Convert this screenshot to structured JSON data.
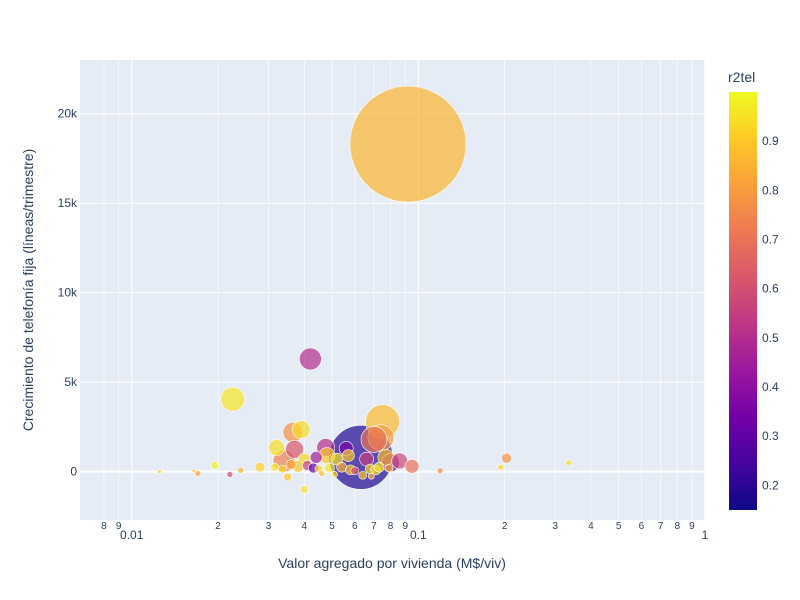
{
  "chart_data": {
    "type": "scatter",
    "subtype": "bubble",
    "xlabel": "Valor agregado por vivienda (M$/viv)",
    "ylabel": "Crecimiento de telefonía fija (líneas/trimestre)",
    "x_scale": "log",
    "xlim": [
      0.0066,
      1.0
    ],
    "ylim": [
      -2700,
      23000
    ],
    "grid": true,
    "plot_background": "#e5ecf6",
    "colorbar": {
      "title": "r2tel",
      "min": 0.15,
      "max": 1.0,
      "ticks": [
        "0.2",
        "0.3",
        "0.4",
        "0.5",
        "0.6",
        "0.7",
        "0.8",
        "0.9"
      ],
      "colorscale": [
        "#0d0887",
        "#46039f",
        "#7201a8",
        "#9c179e",
        "#bd3786",
        "#d8576b",
        "#ed7953",
        "#fb9f3a",
        "#fdca26",
        "#f0f921"
      ]
    },
    "x_major_ticks": [
      {
        "value": 0.01,
        "label": "0.01"
      },
      {
        "value": 0.1,
        "label": "0.1"
      },
      {
        "value": 1,
        "label": "1"
      }
    ],
    "x_minor_ticks": [
      {
        "value": 0.008,
        "label": "8"
      },
      {
        "value": 0.009,
        "label": "9"
      },
      {
        "value": 0.02,
        "label": "2"
      },
      {
        "value": 0.03,
        "label": "3"
      },
      {
        "value": 0.04,
        "label": "4"
      },
      {
        "value": 0.05,
        "label": "5"
      },
      {
        "value": 0.06,
        "label": "6"
      },
      {
        "value": 0.07,
        "label": "7"
      },
      {
        "value": 0.08,
        "label": "8"
      },
      {
        "value": 0.09,
        "label": "9"
      },
      {
        "value": 0.2,
        "label": "2"
      },
      {
        "value": 0.3,
        "label": "3"
      },
      {
        "value": 0.4,
        "label": "4"
      },
      {
        "value": 0.5,
        "label": "5"
      },
      {
        "value": 0.6,
        "label": "6"
      },
      {
        "value": 0.7,
        "label": "7"
      },
      {
        "value": 0.8,
        "label": "8"
      },
      {
        "value": 0.9,
        "label": "9"
      }
    ],
    "y_ticks": [
      {
        "value": 0,
        "label": "0"
      },
      {
        "value": 5000,
        "label": "5k"
      },
      {
        "value": 10000,
        "label": "10k"
      },
      {
        "value": 15000,
        "label": "15k"
      },
      {
        "value": 20000,
        "label": "20k"
      }
    ],
    "points": [
      {
        "x": 0.092,
        "y": 18300,
        "size": 58,
        "color": 0.86
      },
      {
        "x": 0.042,
        "y": 6300,
        "size": 11,
        "color": 0.5
      },
      {
        "x": 0.0225,
        "y": 4050,
        "size": 12,
        "color": 0.96
      },
      {
        "x": 0.063,
        "y": 800,
        "size": 32,
        "color": 0.18
      },
      {
        "x": 0.075,
        "y": 2800,
        "size": 17,
        "color": 0.87
      },
      {
        "x": 0.074,
        "y": 1900,
        "size": 13,
        "color": 0.8
      },
      {
        "x": 0.07,
        "y": 1800,
        "size": 13,
        "color": 0.7
      },
      {
        "x": 0.0365,
        "y": 2200,
        "size": 10,
        "color": 0.78
      },
      {
        "x": 0.039,
        "y": 2350,
        "size": 9,
        "color": 0.94
      },
      {
        "x": 0.032,
        "y": 1350,
        "size": 8,
        "color": 0.95
      },
      {
        "x": 0.037,
        "y": 1250,
        "size": 9,
        "color": 0.62
      },
      {
        "x": 0.0475,
        "y": 1350,
        "size": 9,
        "color": 0.5
      },
      {
        "x": 0.048,
        "y": 900,
        "size": 8,
        "color": 0.9
      },
      {
        "x": 0.056,
        "y": 1300,
        "size": 7,
        "color": 0.35
      },
      {
        "x": 0.034,
        "y": 600,
        "size": 11,
        "color": 0.74
      },
      {
        "x": 0.04,
        "y": 700,
        "size": 6,
        "color": 0.93
      },
      {
        "x": 0.044,
        "y": 800,
        "size": 6,
        "color": 0.45
      },
      {
        "x": 0.052,
        "y": 700,
        "size": 6,
        "color": 0.96
      },
      {
        "x": 0.057,
        "y": 900,
        "size": 6,
        "color": 0.9
      },
      {
        "x": 0.066,
        "y": 700,
        "size": 7,
        "color": 0.55
      },
      {
        "x": 0.077,
        "y": 800,
        "size": 8,
        "color": 0.88
      },
      {
        "x": 0.08,
        "y": 500,
        "size": 9,
        "color": 0.35
      },
      {
        "x": 0.086,
        "y": 600,
        "size": 8,
        "color": 0.58
      },
      {
        "x": 0.095,
        "y": 300,
        "size": 7,
        "color": 0.7
      },
      {
        "x": 0.036,
        "y": 400,
        "size": 5,
        "color": 0.82
      },
      {
        "x": 0.038,
        "y": 300,
        "size": 6,
        "color": 0.9
      },
      {
        "x": 0.041,
        "y": 350,
        "size": 5,
        "color": 0.55
      },
      {
        "x": 0.043,
        "y": 200,
        "size": 5,
        "color": 0.3
      },
      {
        "x": 0.045,
        "y": 150,
        "size": 4,
        "color": 0.92
      },
      {
        "x": 0.049,
        "y": 200,
        "size": 5,
        "color": 0.97
      },
      {
        "x": 0.054,
        "y": 250,
        "size": 5,
        "color": 0.85
      },
      {
        "x": 0.058,
        "y": 100,
        "size": 5,
        "color": 0.9
      },
      {
        "x": 0.06,
        "y": 50,
        "size": 4,
        "color": 0.6
      },
      {
        "x": 0.068,
        "y": 150,
        "size": 5,
        "color": 0.93
      },
      {
        "x": 0.071,
        "y": 100,
        "size": 5,
        "color": 0.95
      },
      {
        "x": 0.073,
        "y": 250,
        "size": 5,
        "color": 0.96
      },
      {
        "x": 0.079,
        "y": 200,
        "size": 4,
        "color": 0.88
      },
      {
        "x": 0.0315,
        "y": 250,
        "size": 4,
        "color": 0.95
      },
      {
        "x": 0.0335,
        "y": 150,
        "size": 4,
        "color": 0.92
      },
      {
        "x": 0.035,
        "y": -300,
        "size": 4,
        "color": 0.9
      },
      {
        "x": 0.04,
        "y": -1000,
        "size": 4,
        "color": 0.96
      },
      {
        "x": 0.046,
        "y": -100,
        "size": 3,
        "color": 0.88
      },
      {
        "x": 0.051,
        "y": -150,
        "size": 3,
        "color": 0.94
      },
      {
        "x": 0.064,
        "y": -200,
        "size": 4,
        "color": 0.9
      },
      {
        "x": 0.0685,
        "y": -250,
        "size": 3,
        "color": 0.86
      },
      {
        "x": 0.028,
        "y": 250,
        "size": 5,
        "color": 0.92
      },
      {
        "x": 0.024,
        "y": 80,
        "size": 3,
        "color": 0.85
      },
      {
        "x": 0.022,
        "y": -150,
        "size": 3,
        "color": 0.6
      },
      {
        "x": 0.0195,
        "y": 350,
        "size": 4,
        "color": 0.98
      },
      {
        "x": 0.017,
        "y": -100,
        "size": 3,
        "color": 0.82
      },
      {
        "x": 0.0165,
        "y": 50,
        "size": 2,
        "color": 0.9
      },
      {
        "x": 0.119,
        "y": 50,
        "size": 3,
        "color": 0.75
      },
      {
        "x": 0.203,
        "y": 750,
        "size": 5,
        "color": 0.78
      },
      {
        "x": 0.194,
        "y": 250,
        "size": 3,
        "color": 0.92
      },
      {
        "x": 0.335,
        "y": 500,
        "size": 3,
        "color": 0.95
      },
      {
        "x": 0.0125,
        "y": 0,
        "size": 2,
        "color": 0.9
      }
    ]
  }
}
